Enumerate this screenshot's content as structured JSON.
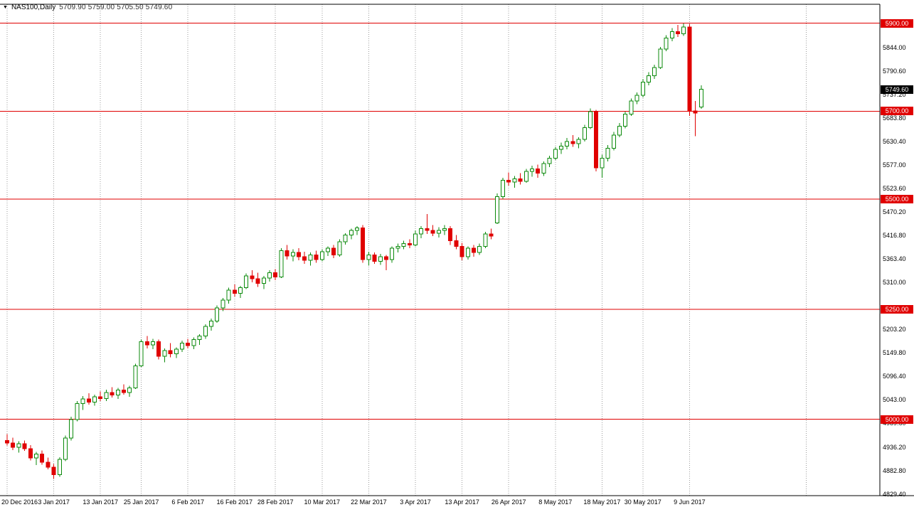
{
  "window": {
    "symbol_timeframe": "NAS100,Daily",
    "ohlc_readout": "5709.90 5759.00 5705.50 5749.60"
  },
  "icons": {
    "chart_menu": "▼"
  },
  "chart_data": {
    "type": "candlestick",
    "symbol": "NAS100",
    "timeframe": "Daily",
    "last_bar": {
      "open": 5709.9,
      "high": 5759.0,
      "low": 5705.5,
      "close": 5749.6
    },
    "current_price_label": "5749.60",
    "current_price": 5749.6,
    "price_axis_labels": [
      "5844.00",
      "5790.60",
      "5737.20",
      "5683.80",
      "5630.40",
      "5577.00",
      "5523.60",
      "5470.20",
      "5416.80",
      "5363.40",
      "5310.00",
      "5203.20",
      "5149.80",
      "5096.40",
      "5043.00",
      "4989.60",
      "4936.20",
      "4882.80",
      "4829.40"
    ],
    "hlines": [
      {
        "price": 5900.0,
        "label": "5900.00"
      },
      {
        "price": 5700.0,
        "label": "5700.00"
      },
      {
        "price": 5500.0,
        "label": "5500.00"
      },
      {
        "price": 5250.0,
        "label": "5250.00"
      },
      {
        "price": 5000.0,
        "label": "5000.00"
      }
    ],
    "x_ticks": [
      {
        "label": "20 Dec 2016",
        "bar_index": 0
      },
      {
        "label": "3 Jan 2017",
        "bar_index": 8
      },
      {
        "label": "13 Jan 2017",
        "bar_index": 16
      },
      {
        "label": "25 Jan 2017",
        "bar_index": 23
      },
      {
        "label": "6 Feb 2017",
        "bar_index": 31
      },
      {
        "label": "16 Feb 2017",
        "bar_index": 39
      },
      {
        "label": "28 Feb 2017",
        "bar_index": 46
      },
      {
        "label": "10 Mar 2017",
        "bar_index": 54
      },
      {
        "label": "22 Mar 2017",
        "bar_index": 62
      },
      {
        "label": "3 Apr 2017",
        "bar_index": 70
      },
      {
        "label": "13 Apr 2017",
        "bar_index": 78
      },
      {
        "label": "26 Apr 2017",
        "bar_index": 86
      },
      {
        "label": "8 May 2017",
        "bar_index": 94
      },
      {
        "label": "18 May 2017",
        "bar_index": 102
      },
      {
        "label": "30 May 2017",
        "bar_index": 109
      },
      {
        "label": "9 Jun 2017",
        "bar_index": 117
      },
      {
        "label": "",
        "bar_index": 137
      }
    ],
    "y_axis_range": {
      "price_max": 5943,
      "price_min": 4828
    },
    "candles": [
      [
        4952,
        4966,
        4940,
        4946
      ],
      [
        4946,
        4958,
        4930,
        4936
      ],
      [
        4936,
        4950,
        4924,
        4944
      ],
      [
        4944,
        4952,
        4928,
        4933
      ],
      [
        4933,
        4941,
        4906,
        4912
      ],
      [
        4912,
        4926,
        4896,
        4921
      ],
      [
        4921,
        4929,
        4897,
        4902
      ],
      [
        4902,
        4913,
        4886,
        4891
      ],
      [
        4891,
        4898,
        4864,
        4874
      ],
      [
        4874,
        4914,
        4869,
        4909
      ],
      [
        4909,
        4963,
        4905,
        4957
      ],
      [
        4957,
        5006,
        4952,
        4999
      ],
      [
        4999,
        5041,
        4995,
        5036
      ],
      [
        5036,
        5053,
        5021,
        5046
      ],
      [
        5046,
        5059,
        5033,
        5039
      ],
      [
        5039,
        5056,
        5031,
        5051
      ],
      [
        5051,
        5063,
        5041,
        5047
      ],
      [
        5047,
        5067,
        5041,
        5061
      ],
      [
        5061,
        5073,
        5049,
        5055
      ],
      [
        5055,
        5071,
        5046,
        5066
      ],
      [
        5066,
        5079,
        5056,
        5061
      ],
      [
        5061,
        5076,
        5051,
        5071
      ],
      [
        5071,
        5126,
        5069,
        5121
      ],
      [
        5121,
        5181,
        5119,
        5176
      ],
      [
        5176,
        5189,
        5161,
        5169
      ],
      [
        5169,
        5183,
        5159,
        5176
      ],
      [
        5176,
        5181,
        5136,
        5143
      ],
      [
        5143,
        5161,
        5129,
        5156
      ],
      [
        5156,
        5173,
        5141,
        5149
      ],
      [
        5149,
        5163,
        5139,
        5159
      ],
      [
        5159,
        5179,
        5153,
        5173
      ],
      [
        5173,
        5183,
        5161,
        5167
      ],
      [
        5167,
        5186,
        5159,
        5181
      ],
      [
        5181,
        5193,
        5169,
        5189
      ],
      [
        5189,
        5216,
        5183,
        5211
      ],
      [
        5211,
        5229,
        5201,
        5223
      ],
      [
        5223,
        5259,
        5219,
        5253
      ],
      [
        5253,
        5276,
        5246,
        5271
      ],
      [
        5271,
        5299,
        5263,
        5293
      ],
      [
        5293,
        5306,
        5279,
        5286
      ],
      [
        5286,
        5303,
        5276,
        5299
      ],
      [
        5299,
        5331,
        5296,
        5326
      ],
      [
        5326,
        5339,
        5311,
        5319
      ],
      [
        5319,
        5333,
        5301,
        5309
      ],
      [
        5309,
        5326,
        5296,
        5321
      ],
      [
        5321,
        5339,
        5313,
        5333
      ],
      [
        5333,
        5341,
        5316,
        5323
      ],
      [
        5323,
        5389,
        5321,
        5383
      ],
      [
        5383,
        5396,
        5363,
        5371
      ],
      [
        5371,
        5386,
        5359,
        5379
      ],
      [
        5379,
        5389,
        5361,
        5369
      ],
      [
        5369,
        5381,
        5353,
        5361
      ],
      [
        5361,
        5379,
        5349,
        5373
      ],
      [
        5373,
        5383,
        5356,
        5363
      ],
      [
        5363,
        5386,
        5359,
        5381
      ],
      [
        5381,
        5393,
        5371,
        5389
      ],
      [
        5389,
        5396,
        5366,
        5373
      ],
      [
        5373,
        5409,
        5369,
        5403
      ],
      [
        5403,
        5423,
        5397,
        5419
      ],
      [
        5419,
        5433,
        5409,
        5429
      ],
      [
        5429,
        5439,
        5419,
        5435
      ],
      [
        5435,
        5441,
        5356,
        5363
      ],
      [
        5363,
        5381,
        5349,
        5373
      ],
      [
        5373,
        5379,
        5353,
        5359
      ],
      [
        5359,
        5376,
        5351,
        5369
      ],
      [
        5369,
        5373,
        5339,
        5363
      ],
      [
        5363,
        5393,
        5356,
        5389
      ],
      [
        5389,
        5399,
        5379,
        5393
      ],
      [
        5393,
        5406,
        5386,
        5399
      ],
      [
        5399,
        5409,
        5389,
        5396
      ],
      [
        5396,
        5429,
        5393,
        5421
      ],
      [
        5421,
        5439,
        5411,
        5433
      ],
      [
        5433,
        5466,
        5421,
        5429
      ],
      [
        5429,
        5441,
        5416,
        5423
      ],
      [
        5423,
        5436,
        5413,
        5429
      ],
      [
        5429,
        5441,
        5419,
        5433
      ],
      [
        5433,
        5439,
        5396,
        5406
      ],
      [
        5406,
        5419,
        5386,
        5393
      ],
      [
        5393,
        5401,
        5361,
        5369
      ],
      [
        5369,
        5393,
        5363,
        5389
      ],
      [
        5389,
        5396,
        5369,
        5379
      ],
      [
        5379,
        5399,
        5373,
        5393
      ],
      [
        5393,
        5426,
        5389,
        5421
      ],
      [
        5421,
        5433,
        5409,
        5416
      ],
      [
        5446,
        5513,
        5444,
        5506
      ],
      [
        5506,
        5549,
        5501,
        5543
      ],
      [
        5543,
        5561,
        5531,
        5539
      ],
      [
        5539,
        5553,
        5526,
        5546
      ],
      [
        5546,
        5559,
        5533,
        5541
      ],
      [
        5541,
        5569,
        5537,
        5563
      ],
      [
        5563,
        5576,
        5551,
        5569
      ],
      [
        5569,
        5579,
        5549,
        5559
      ],
      [
        5559,
        5586,
        5553,
        5581
      ],
      [
        5581,
        5599,
        5573,
        5593
      ],
      [
        5593,
        5619,
        5589,
        5613
      ],
      [
        5613,
        5629,
        5603,
        5621
      ],
      [
        5621,
        5639,
        5613,
        5631
      ],
      [
        5631,
        5646,
        5619,
        5626
      ],
      [
        5626,
        5641,
        5616,
        5636
      ],
      [
        5636,
        5669,
        5631,
        5663
      ],
      [
        5663,
        5706,
        5659,
        5699
      ],
      [
        5699,
        5703,
        5563,
        5571
      ],
      [
        5571,
        5601,
        5549,
        5593
      ],
      [
        5593,
        5623,
        5586,
        5616
      ],
      [
        5616,
        5653,
        5611,
        5646
      ],
      [
        5646,
        5673,
        5641,
        5666
      ],
      [
        5666,
        5699,
        5661,
        5693
      ],
      [
        5693,
        5729,
        5689,
        5723
      ],
      [
        5723,
        5743,
        5716,
        5736
      ],
      [
        5736,
        5773,
        5731,
        5766
      ],
      [
        5766,
        5789,
        5759,
        5781
      ],
      [
        5781,
        5806,
        5773,
        5799
      ],
      [
        5799,
        5846,
        5796,
        5841
      ],
      [
        5841,
        5873,
        5836,
        5866
      ],
      [
        5866,
        5889,
        5859,
        5881
      ],
      [
        5881,
        5896,
        5869,
        5876
      ],
      [
        5876,
        5899,
        5871,
        5891
      ],
      [
        5891,
        5898,
        5689,
        5701
      ],
      [
        5701,
        5723,
        5643,
        5696
      ],
      [
        5709.9,
        5759.0,
        5705.5,
        5749.6
      ]
    ],
    "colors": {
      "up": "#0b8a0b",
      "up_fill": "#ffffff",
      "down": "#e00000",
      "hline": "#e00000",
      "hline_badge_bg": "#e00000",
      "current_badge_bg": "#000000",
      "grid": "#9c9c9c",
      "border": "#000000",
      "background": "#ffffff"
    }
  }
}
